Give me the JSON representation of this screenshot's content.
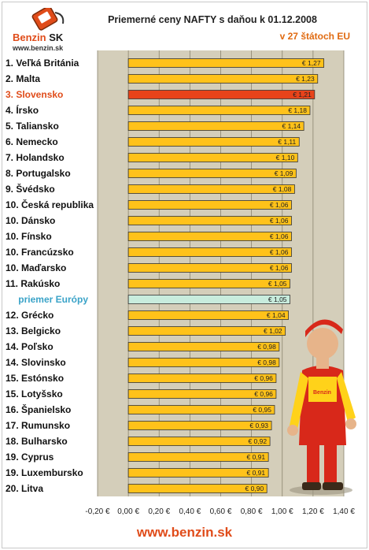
{
  "header": {
    "logo_text": "Benzin",
    "logo_text_sk": "SK",
    "logo_url": "www.benzin.sk",
    "title": "Priemerné ceny NAFTY s daňou k 01.12.2008",
    "subtitle": "v 27 štátoch EU"
  },
  "footer": {
    "url": "www.benzin.sk"
  },
  "colors": {
    "bar": "#ffc21a",
    "highlight": "#e8431a",
    "average": "#c8ecdd",
    "plot_bg": "#d4ceba"
  },
  "chart_data": {
    "type": "bar",
    "orientation": "horizontal",
    "title": "Priemerné ceny NAFTY s daňou k 01.12.2008",
    "subtitle": "v 27 štátoch EU",
    "categories": [
      "1. Veľká Británia",
      "2. Malta",
      "3. Slovensko",
      "4. Írsko",
      "5. Taliansko",
      "6. Nemecko",
      "7. Holandsko",
      "8. Portugalsko",
      "9. Švédsko",
      "10. Česká republika",
      "10. Dánsko",
      "10. Fínsko",
      "10. Francúzsko",
      "10. Maďarsko",
      "11. Rakúsko",
      "priemer Európy",
      "12. Grécko",
      "13. Belgicko",
      "14. Poľsko",
      "14. Slovinsko",
      "15. Estónsko",
      "15. Lotyšsko",
      "16. Španielsko",
      "17. Rumunsko",
      "18. Bulharsko",
      "19. Cyprus",
      "19. Luxembursko",
      "20. Litva"
    ],
    "values": [
      1.27,
      1.23,
      1.21,
      1.18,
      1.14,
      1.11,
      1.1,
      1.09,
      1.08,
      1.06,
      1.06,
      1.06,
      1.06,
      1.06,
      1.05,
      1.05,
      1.04,
      1.02,
      0.98,
      0.98,
      0.96,
      0.96,
      0.95,
      0.93,
      0.92,
      0.91,
      0.91,
      0.9
    ],
    "value_labels": [
      "€ 1,27",
      "€ 1,23",
      "€ 1,21",
      "€ 1,18",
      "€ 1,14",
      "€ 1,11",
      "€ 1,10",
      "€ 1,09",
      "€ 1,08",
      "€ 1,06",
      "€ 1,06",
      "€ 1,06",
      "€ 1,06",
      "€ 1,06",
      "€ 1,05",
      "€ 1,05",
      "€ 1,04",
      "€ 1,02",
      "€ 0,98",
      "€ 0,98",
      "€ 0,96",
      "€ 0,96",
      "€ 0,95",
      "€ 0,93",
      "€ 0,92",
      "€ 0,91",
      "€ 0,91",
      "€ 0,90"
    ],
    "highlight_index": 2,
    "average_index": 15,
    "xlim": [
      -0.2,
      1.4
    ],
    "xticks": [
      -0.2,
      0,
      0.2,
      0.4,
      0.6,
      0.8,
      1.0,
      1.2,
      1.4
    ],
    "xtick_labels": [
      "-0,20 €",
      "0,00 €",
      "0,20 €",
      "0,40 €",
      "0,60 €",
      "0,80 €",
      "1,00 €",
      "1,20 €",
      "1,40 €"
    ],
    "xlabel": "",
    "ylabel": "",
    "grid": true,
    "legend": "none"
  }
}
